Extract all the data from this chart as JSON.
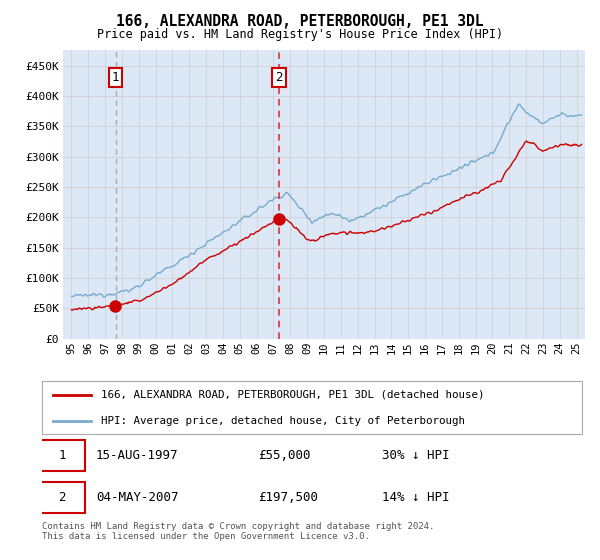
{
  "title": "166, ALEXANDRA ROAD, PETERBOROUGH, PE1 3DL",
  "subtitle": "Price paid vs. HM Land Registry's House Price Index (HPI)",
  "legend_line1": "166, ALEXANDRA ROAD, PETERBOROUGH, PE1 3DL (detached house)",
  "legend_line2": "HPI: Average price, detached house, City of Peterborough",
  "transaction1_date": "15-AUG-1997",
  "transaction1_price": 55000,
  "transaction1_label": "30% ↓ HPI",
  "transaction2_date": "04-MAY-2007",
  "transaction2_price": 197500,
  "transaction2_label": "14% ↓ HPI",
  "transaction1_year": 1997.62,
  "transaction2_year": 2007.34,
  "hpi_line_color": "#7aabcf",
  "price_paid_color": "#cc0000",
  "vline1_color": "#aaaaaa",
  "vline2_color": "#dd3333",
  "plot_bg_color": "#dce8f5",
  "ylim": [
    0,
    475000
  ],
  "xlim_start": 1994.5,
  "xlim_end": 2025.5,
  "footer": "Contains HM Land Registry data © Crown copyright and database right 2024.\nThis data is licensed under the Open Government Licence v3.0."
}
